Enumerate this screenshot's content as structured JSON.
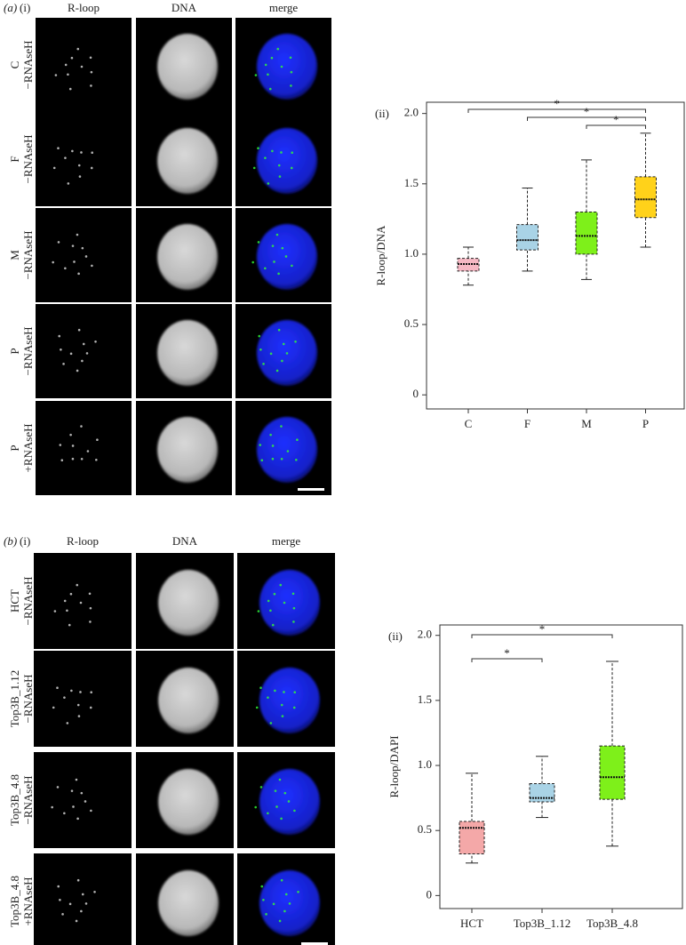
{
  "panel_a": {
    "label": "(a)",
    "part": "(i)",
    "columns": [
      "R-loop",
      "DNA",
      "merge"
    ],
    "column_colors": [
      "#2ca02c",
      "#2a3fd0",
      "#222222"
    ],
    "rows": [
      [
        "C",
        "−RNAseH"
      ],
      [
        "F",
        "−RNAseH"
      ],
      [
        "M",
        "−RNAseH"
      ],
      [
        "P",
        "−RNAseH"
      ],
      [
        "P",
        "+RNAseH"
      ]
    ]
  },
  "panel_b": {
    "label": "(b)",
    "part": "(i)",
    "columns": [
      "R-loop",
      "DNA",
      "merge"
    ],
    "column_colors": [
      "#2ca02c",
      "#2a3fd0",
      "#222222"
    ],
    "rows": [
      [
        "HCT",
        "−RNAseH"
      ],
      [
        "Top3B_1.12",
        "−RNAseH"
      ],
      [
        "Top3B_4.8",
        "−RNAseH"
      ],
      [
        "Top3B_4.8",
        "+RNAseH"
      ]
    ]
  },
  "chart_data": [
    {
      "type": "box",
      "panel_label": "(ii)",
      "y_label": "R-loop/DNA",
      "categories": [
        "C",
        "F",
        "M",
        "P"
      ],
      "boxes": [
        {
          "color": "#f6b8c4",
          "whisker_low": 0.78,
          "q1": 0.88,
          "median": 0.93,
          "q3": 0.97,
          "whisker_high": 1.05
        },
        {
          "color": "#a9d3e6",
          "whisker_low": 0.88,
          "q1": 1.03,
          "median": 1.1,
          "q3": 1.21,
          "whisker_high": 1.47
        },
        {
          "color": "#7ef01a",
          "whisker_low": 0.82,
          "q1": 1.0,
          "median": 1.13,
          "q3": 1.3,
          "whisker_high": 1.67
        },
        {
          "color": "#ffd21a",
          "whisker_low": 1.05,
          "q1": 1.26,
          "median": 1.39,
          "q3": 1.55,
          "whisker_high": 1.86
        }
      ],
      "ylim": [
        -0.1,
        2.08
      ],
      "yticks": [
        0,
        0.5,
        {
          "value": 1,
          "label": "1.0"
        },
        1.5,
        {
          "value": 2,
          "label": "2.0"
        }
      ],
      "comparisons": [
        {
          "groups": [
            "C",
            "P"
          ],
          "label": "*"
        },
        {
          "groups": [
            "F",
            "P"
          ],
          "label": "*"
        },
        {
          "groups": [
            "M",
            "P"
          ],
          "label": "*"
        }
      ]
    },
    {
      "type": "box",
      "panel_label": "(ii)",
      "y_label": "R-loop/DAPI",
      "categories": [
        "HCT",
        "Top3B_1.12",
        "Top3B_4.8"
      ],
      "boxes": [
        {
          "color": "#f4a8a8",
          "whisker_low": 0.25,
          "q1": 0.32,
          "median": 0.52,
          "q3": 0.57,
          "whisker_high": 0.94
        },
        {
          "color": "#a9d3e6",
          "whisker_low": 0.6,
          "q1": 0.72,
          "median": 0.75,
          "q3": 0.86,
          "whisker_high": 1.07
        },
        {
          "color": "#7ef01a",
          "whisker_low": 0.38,
          "q1": 0.74,
          "median": 0.91,
          "q3": 1.15,
          "whisker_high": 1.8
        }
      ],
      "ylim": [
        -0.1,
        2.08
      ],
      "yticks": [
        0,
        0.5,
        {
          "value": 1,
          "label": "1.0"
        },
        1.5,
        {
          "value": 2,
          "label": "2.0"
        }
      ],
      "comparisons": [
        {
          "groups": [
            "HCT",
            "Top3B_4.8"
          ],
          "label": "*"
        },
        {
          "groups": [
            "HCT",
            "Top3B_1.12"
          ],
          "label": "*"
        }
      ]
    }
  ]
}
